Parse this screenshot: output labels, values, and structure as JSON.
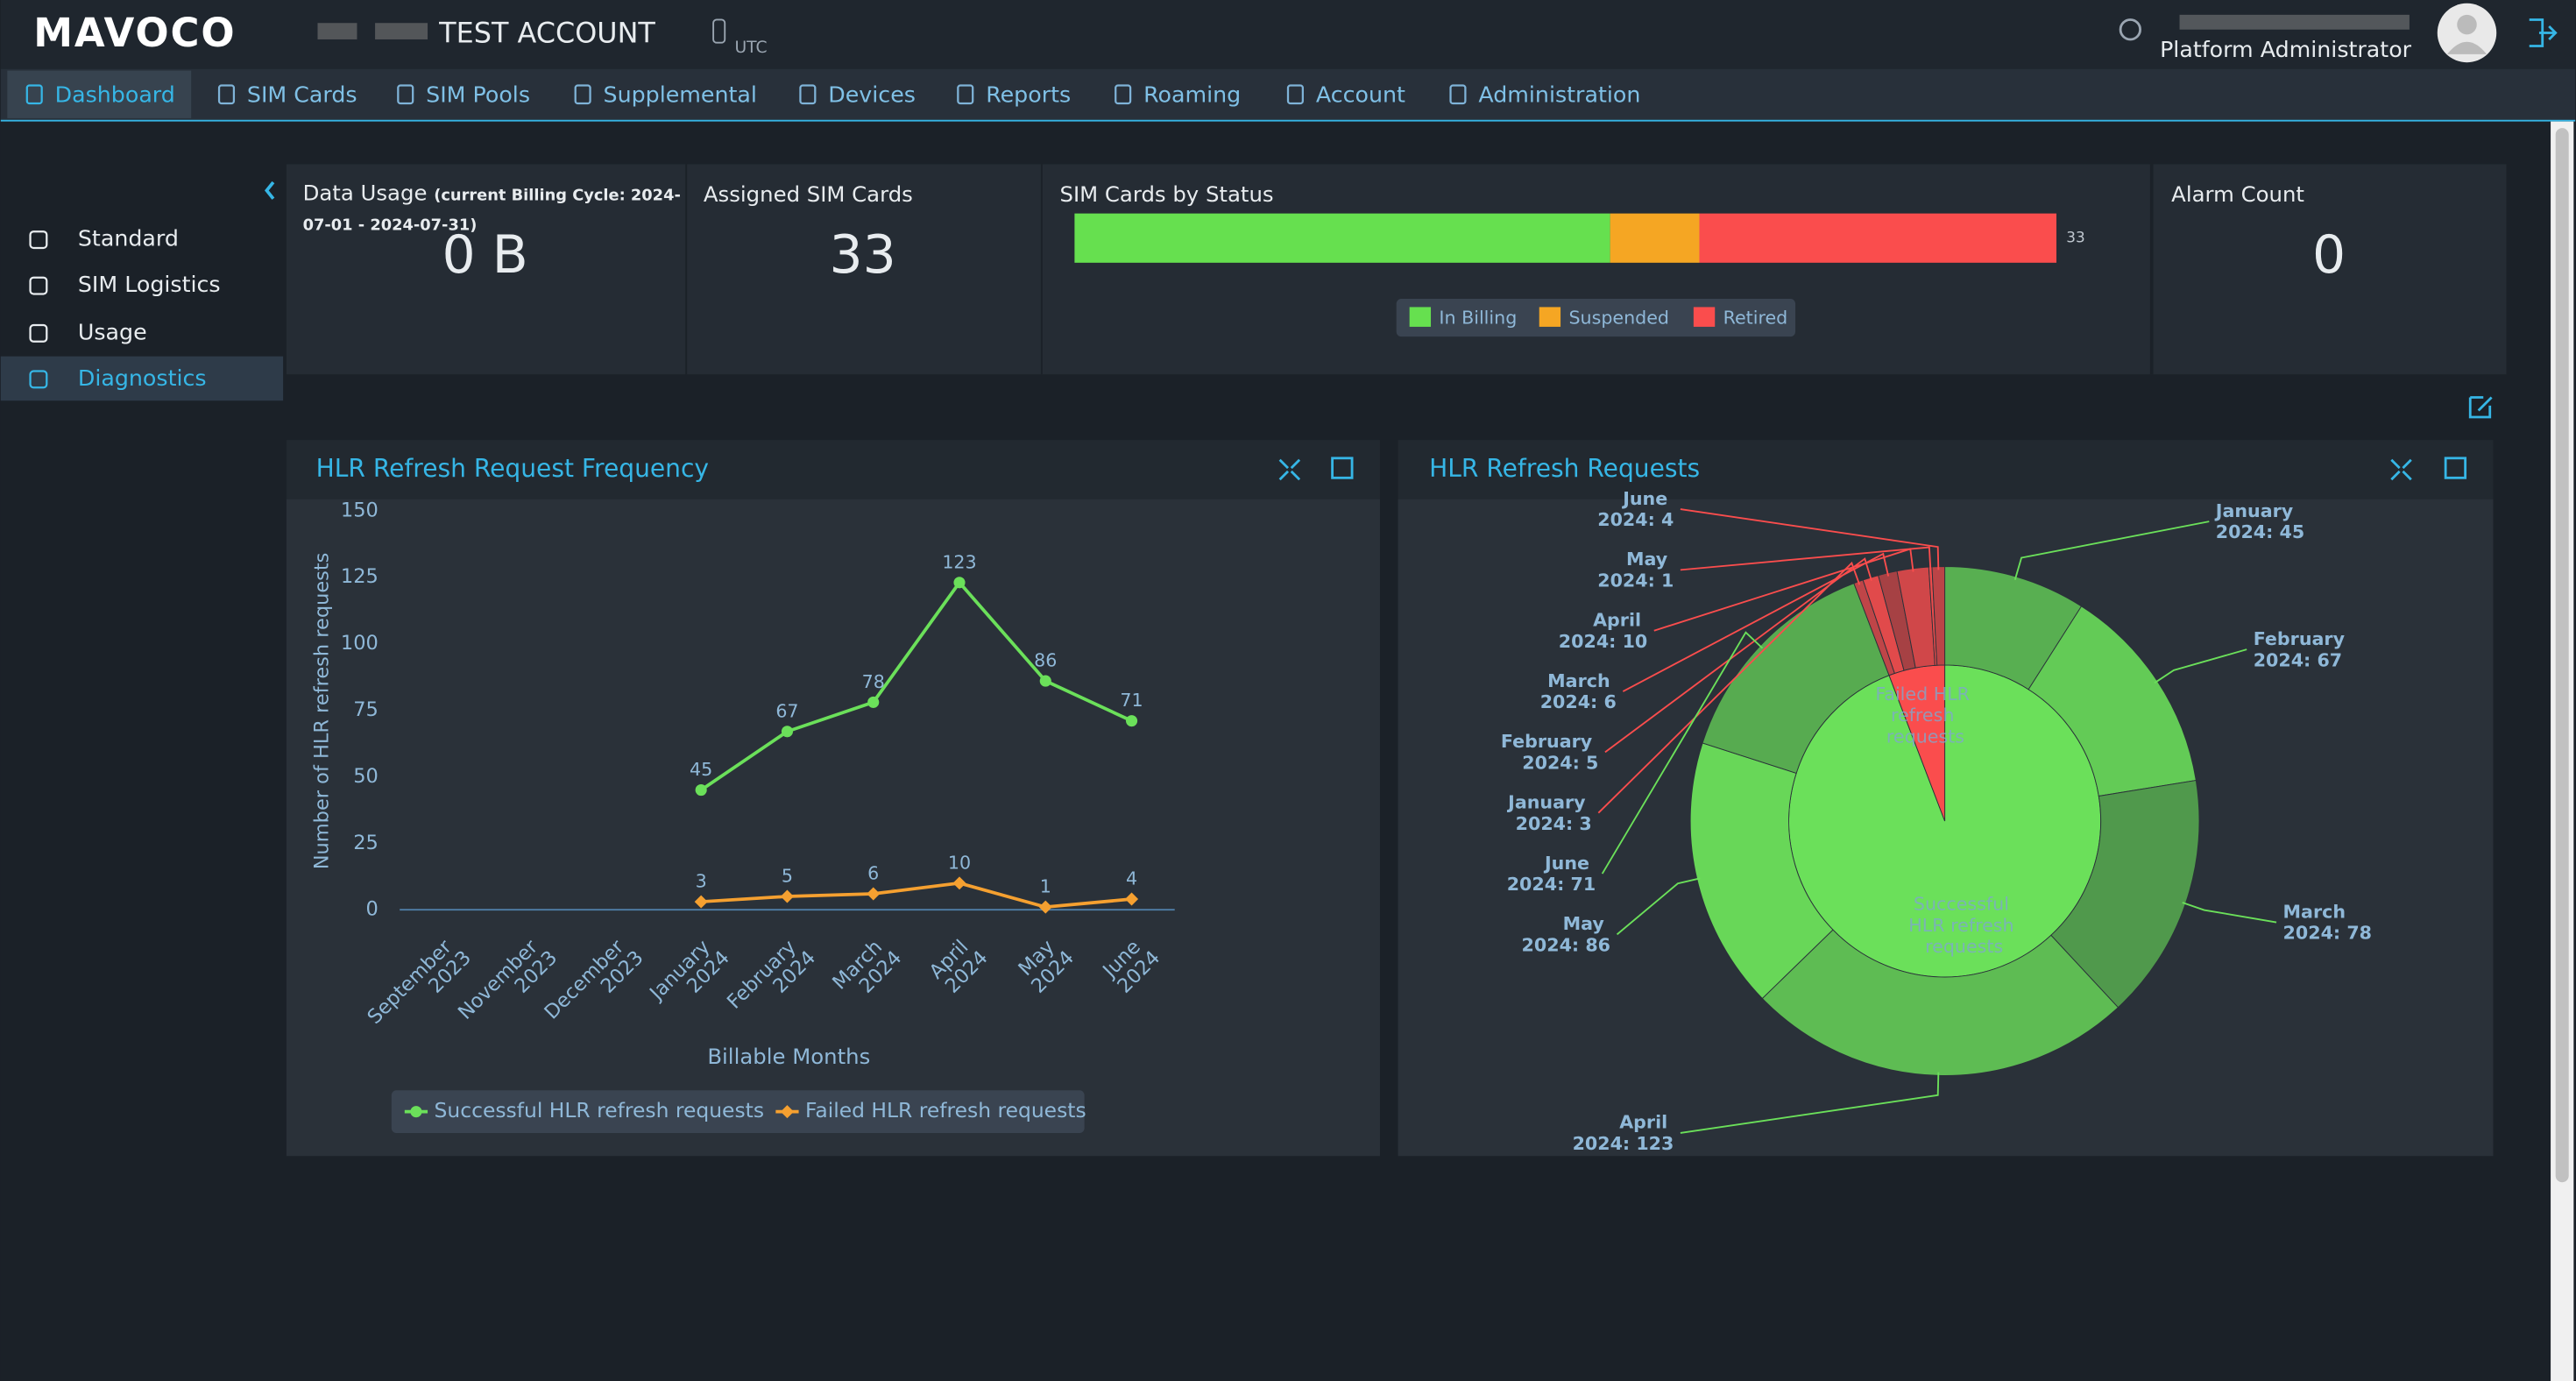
{
  "header": {
    "logo": "MAVOCO",
    "account": "TEST ACCOUNT",
    "timezone": "UTC",
    "user_role": "Platform Administrator"
  },
  "nav": [
    "Dashboard",
    "SIM Cards",
    "SIM Pools",
    "Supplemental",
    "Devices",
    "Reports",
    "Roaming",
    "Account",
    "Administration"
  ],
  "sidebar": [
    "Standard",
    "SIM Logistics",
    "Usage",
    "Diagnostics"
  ],
  "kpis": {
    "data_usage": {
      "label": "Data Usage",
      "note": "(current Billing Cycle: 2024-07-01 - 2024-07-31)",
      "value": "0 B"
    },
    "assigned_sim_cards": {
      "label": "Assigned SIM Cards",
      "value": 33
    },
    "alarm_count": {
      "label": "Alarm Count",
      "value": 0
    }
  },
  "chart_data": [
    {
      "type": "stacked_bar",
      "title": "SIM Cards by Status",
      "series": [
        {
          "name": "In Billing",
          "color": "#66e04f",
          "values": [
            18
          ]
        },
        {
          "name": "Suspended",
          "color": "#f5a623",
          "values": [
            3
          ]
        },
        {
          "name": "Retired",
          "color": "#fa4d4d",
          "values": [
            12
          ]
        }
      ],
      "xlim": [
        0,
        33
      ],
      "xticks": [
        33
      ]
    },
    {
      "type": "line",
      "title": "HLR Refresh Request Frequency",
      "x_label": "Billable Months",
      "y_label": "Number of HLR refresh requests",
      "categories": [
        "September 2023",
        "November 2023",
        "December 2023",
        "January 2024",
        "February 2024",
        "March 2024",
        "April 2024",
        "May 2024",
        "June 2024"
      ],
      "series": [
        {
          "name": "Successful HLR refresh requests",
          "color": "#6be05a",
          "marker": "circle",
          "values": [
            null,
            null,
            null,
            45,
            67,
            78,
            123,
            86,
            71
          ]
        },
        {
          "name": "Failed HLR refresh requests",
          "color": "#f5a030",
          "marker": "diamond",
          "values": [
            null,
            null,
            null,
            3,
            5,
            6,
            10,
            1,
            4
          ]
        }
      ],
      "ylim": [
        0,
        150
      ],
      "yticks": [
        0,
        25,
        50,
        75,
        100,
        125,
        150
      ],
      "grid": false
    },
    {
      "type": "sunburst",
      "title": "HLR Refresh Requests",
      "series": [
        {
          "name": "Successful HLR refresh requests",
          "color": "#6be05a",
          "values": [
            45,
            67,
            78,
            123,
            86,
            71
          ],
          "value_labels": [
            "January 2024: 45",
            "February 2024: 67",
            "March 2024: 78",
            "April 2024: 123",
            "May 2024: 86",
            "June 2024: 71"
          ]
        },
        {
          "name": "Failed HLR refresh requests",
          "color": "#fa4d4d",
          "values": [
            3,
            5,
            6,
            10,
            1,
            4
          ],
          "value_labels": [
            "January 2024: 3",
            "February 2024: 5",
            "March 2024: 6",
            "April 2024: 10",
            "May 2024: 1",
            "June 2024: 4"
          ]
        }
      ]
    }
  ]
}
